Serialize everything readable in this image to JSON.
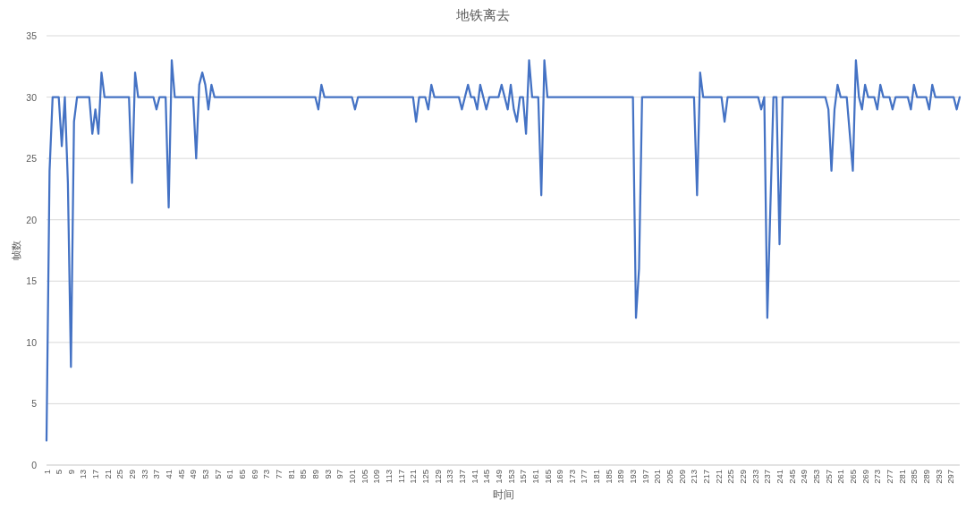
{
  "chart_data": {
    "type": "line",
    "title": "地铁离去",
    "xlabel": "时间",
    "ylabel": "帧数",
    "categories": [
      "1",
      null,
      null,
      null,
      "5",
      null,
      null,
      null,
      "9",
      null,
      null,
      null,
      "13",
      null,
      null,
      null,
      "17",
      null,
      null,
      null,
      "21",
      null,
      null,
      null,
      "25",
      null,
      null,
      null,
      "29",
      null,
      null,
      null,
      "33",
      null,
      null,
      null,
      "37",
      null,
      null,
      null,
      "41",
      null,
      null,
      null,
      "45",
      null,
      null,
      null,
      "49",
      null,
      null,
      null,
      "53",
      null,
      null,
      null,
      "57",
      null,
      null,
      null,
      "61",
      null,
      null,
      null,
      "65",
      null,
      null,
      null,
      "69",
      null,
      null,
      null,
      "73",
      null,
      null,
      null,
      "77",
      null,
      null,
      null,
      "81",
      null,
      null,
      null,
      "85",
      null,
      null,
      null,
      "89",
      null,
      null,
      null,
      "93",
      null,
      null,
      null,
      "97",
      null,
      null,
      null,
      "101",
      null,
      null,
      null,
      "105",
      null,
      null,
      null,
      "109",
      null,
      null,
      null,
      "113",
      null,
      null,
      null,
      "117",
      null,
      null,
      null,
      "121",
      null,
      null,
      null,
      "125",
      null,
      null,
      null,
      "129",
      null,
      null,
      null,
      "133",
      null,
      null,
      null,
      "137",
      null,
      null,
      null,
      "141",
      null,
      null,
      null,
      "145",
      null,
      null,
      null,
      "149",
      null,
      null,
      null,
      "153",
      null,
      null,
      null,
      "157",
      null,
      null,
      null,
      "161",
      null,
      null,
      null,
      "165",
      null,
      null,
      null,
      "169",
      null,
      null,
      null,
      "173",
      null,
      null,
      null,
      "177",
      null,
      null,
      null,
      "181",
      null,
      null,
      null,
      "185",
      null,
      null,
      null,
      "189",
      null,
      null,
      null,
      "193",
      null,
      null,
      null,
      "197",
      null,
      null,
      null,
      "201",
      null,
      null,
      null,
      "205",
      null,
      null,
      null,
      "209",
      null,
      null,
      null,
      "213",
      null,
      null,
      null,
      "217",
      null,
      null,
      null,
      "221",
      null,
      null,
      null,
      "225",
      null,
      null,
      null,
      "229",
      null,
      null,
      null,
      "233",
      null,
      null,
      null,
      "237",
      null,
      null,
      null,
      "241",
      null,
      null,
      null,
      "245",
      null,
      null,
      null,
      "249",
      null,
      null,
      null,
      "253",
      null,
      null,
      null,
      "257",
      null,
      null,
      null,
      "261",
      null,
      null,
      null,
      "265",
      null,
      null,
      null,
      "269",
      null,
      null,
      null,
      "273",
      null,
      null,
      null,
      "277",
      null,
      null,
      null,
      "281",
      null,
      null,
      null,
      "285",
      null,
      null,
      null,
      "289",
      null,
      null,
      null,
      "293",
      null,
      null,
      null,
      "297",
      null,
      null,
      null
    ],
    "series": [
      {
        "color": "#4472c4",
        "values": [
          2,
          24,
          30,
          30,
          30,
          26,
          30,
          23,
          8,
          28,
          30,
          30,
          30,
          30,
          30,
          27,
          29,
          27,
          32,
          30,
          30,
          30,
          30,
          30,
          30,
          30,
          30,
          30,
          23,
          32,
          30,
          30,
          30,
          30,
          30,
          30,
          29,
          30,
          30,
          30,
          21,
          33,
          30,
          30,
          30,
          30,
          30,
          30,
          30,
          25,
          31,
          32,
          31,
          29,
          31,
          30,
          30,
          30,
          30,
          30,
          30,
          30,
          30,
          30,
          30,
          30,
          30,
          30,
          30,
          30,
          30,
          30,
          30,
          30,
          30,
          30,
          30,
          30,
          30,
          30,
          30,
          30,
          30,
          30,
          30,
          30,
          30,
          30,
          30,
          29,
          31,
          30,
          30,
          30,
          30,
          30,
          30,
          30,
          30,
          30,
          30,
          29,
          30,
          30,
          30,
          30,
          30,
          30,
          30,
          30,
          30,
          30,
          30,
          30,
          30,
          30,
          30,
          30,
          30,
          30,
          30,
          28,
          30,
          30,
          30,
          29,
          31,
          30,
          30,
          30,
          30,
          30,
          30,
          30,
          30,
          30,
          29,
          30,
          31,
          30,
          30,
          29,
          31,
          30,
          29,
          30,
          30,
          30,
          30,
          31,
          30,
          29,
          31,
          29,
          28,
          30,
          30,
          27,
          33,
          30,
          30,
          30,
          22,
          33,
          30,
          30,
          30,
          30,
          30,
          30,
          30,
          30,
          30,
          30,
          30,
          30,
          30,
          30,
          30,
          30,
          30,
          30,
          30,
          30,
          30,
          30,
          30,
          30,
          30,
          30,
          30,
          30,
          30,
          12,
          16,
          30,
          30,
          30,
          30,
          30,
          30,
          30,
          30,
          30,
          30,
          30,
          30,
          30,
          30,
          30,
          30,
          30,
          30,
          22,
          32,
          30,
          30,
          30,
          30,
          30,
          30,
          30,
          28,
          30,
          30,
          30,
          30,
          30,
          30,
          30,
          30,
          30,
          30,
          30,
          29,
          30,
          12,
          21,
          30,
          30,
          18,
          30,
          30,
          30,
          30,
          30,
          30,
          30,
          30,
          30,
          30,
          30,
          30,
          30,
          30,
          30,
          29,
          24,
          29,
          31,
          30,
          30,
          30,
          27,
          24,
          33,
          30,
          29,
          31,
          30,
          30,
          30,
          29,
          31,
          30,
          30,
          30,
          29,
          30,
          30,
          30,
          30,
          30,
          29,
          31,
          30,
          30,
          30,
          30,
          29,
          31,
          30,
          30,
          30,
          30,
          30,
          30,
          30,
          29,
          30
        ]
      }
    ],
    "ylim": [
      0,
      35
    ],
    "yticks": [
      0,
      5,
      10,
      15,
      20,
      25,
      30,
      35
    ],
    "grid": "y"
  }
}
